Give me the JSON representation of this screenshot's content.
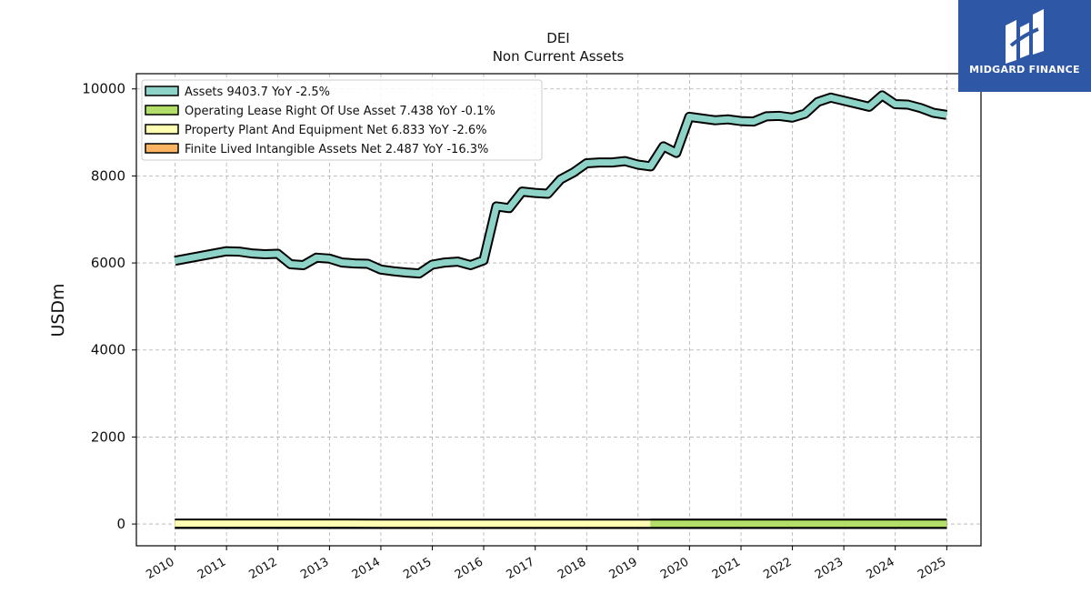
{
  "brand": {
    "name": "MIDGARD FINANCE",
    "logo_icon": "midgard-logo-icon",
    "background": "#2e58a6"
  },
  "chart_data": {
    "type": "line",
    "title": "DEI",
    "subtitle": "Non Current  Assets",
    "ylabel": "USDm",
    "xlabel": "",
    "ylim": [
      -500,
      10350
    ],
    "yticks": [
      0,
      2000,
      4000,
      6000,
      8000,
      10000
    ],
    "xlim": [
      "2009-04-01",
      "2025-09-01"
    ],
    "xticks": [
      "2010",
      "2011",
      "2012",
      "2013",
      "2014",
      "2015",
      "2016",
      "2017",
      "2018",
      "2019",
      "2020",
      "2021",
      "2022",
      "2023",
      "2024",
      "2025"
    ],
    "grid": true,
    "legend_position": "top-left",
    "series": [
      {
        "name": "Assets",
        "legend_label": "Assets  9403.7 YoY -2.5%",
        "color": "#8dd3c7",
        "points": [
          [
            "2009-12-31",
            6050
          ],
          [
            "2010-12-31",
            6270
          ],
          [
            "2011-03-31",
            6260
          ],
          [
            "2011-06-30",
            6220
          ],
          [
            "2011-09-30",
            6200
          ],
          [
            "2011-12-31",
            6210
          ],
          [
            "2012-03-31",
            5970
          ],
          [
            "2012-06-30",
            5950
          ],
          [
            "2012-09-30",
            6120
          ],
          [
            "2012-12-31",
            6100
          ],
          [
            "2013-03-31",
            6010
          ],
          [
            "2013-06-30",
            5990
          ],
          [
            "2013-09-30",
            5980
          ],
          [
            "2013-12-31",
            5850
          ],
          [
            "2014-03-31",
            5810
          ],
          [
            "2014-06-30",
            5780
          ],
          [
            "2014-09-30",
            5760
          ],
          [
            "2014-12-31",
            5960
          ],
          [
            "2015-03-31",
            6010
          ],
          [
            "2015-06-30",
            6030
          ],
          [
            "2015-09-30",
            5950
          ],
          [
            "2015-12-31",
            6060
          ],
          [
            "2016-03-31",
            7300
          ],
          [
            "2016-06-30",
            7260
          ],
          [
            "2016-09-30",
            7640
          ],
          [
            "2016-12-31",
            7610
          ],
          [
            "2017-03-31",
            7590
          ],
          [
            "2017-06-30",
            7920
          ],
          [
            "2017-09-30",
            8080
          ],
          [
            "2017-12-31",
            8290
          ],
          [
            "2018-03-31",
            8310
          ],
          [
            "2018-06-30",
            8310
          ],
          [
            "2018-09-30",
            8340
          ],
          [
            "2018-12-31",
            8260
          ],
          [
            "2019-03-31",
            8220
          ],
          [
            "2019-06-30",
            8680
          ],
          [
            "2019-09-30",
            8530
          ],
          [
            "2019-12-31",
            9360
          ],
          [
            "2020-03-31",
            9320
          ],
          [
            "2020-06-30",
            9280
          ],
          [
            "2020-09-30",
            9300
          ],
          [
            "2020-12-31",
            9260
          ],
          [
            "2021-03-31",
            9250
          ],
          [
            "2021-06-30",
            9370
          ],
          [
            "2021-09-30",
            9380
          ],
          [
            "2021-12-31",
            9340
          ],
          [
            "2022-03-31",
            9430
          ],
          [
            "2022-06-30",
            9700
          ],
          [
            "2022-09-30",
            9800
          ],
          [
            "2022-12-31",
            9730
          ],
          [
            "2023-03-31",
            9660
          ],
          [
            "2023-06-30",
            9590
          ],
          [
            "2023-09-30",
            9850
          ],
          [
            "2023-12-31",
            9650
          ],
          [
            "2024-03-31",
            9640
          ],
          [
            "2024-06-30",
            9560
          ],
          [
            "2024-09-30",
            9450
          ],
          [
            "2024-12-31",
            9403.7
          ]
        ]
      },
      {
        "name": "Operating Lease Right Of Use Asset",
        "legend_label": "Operating Lease Right Of Use Asset  7.438 YoY -0.1%",
        "color": "#b3de69",
        "points": [
          [
            "2019-03-31",
            7.5
          ],
          [
            "2020-12-31",
            7.5
          ],
          [
            "2022-12-31",
            7.45
          ],
          [
            "2024-12-31",
            7.438
          ]
        ]
      },
      {
        "name": "Property Plant And Equipment Net",
        "legend_label": "Property Plant And Equipment Net  6.833 YoY -2.6%",
        "color": "#ffffb3",
        "points": [
          [
            "2009-12-31",
            10
          ],
          [
            "2013-12-31",
            9
          ],
          [
            "2018-12-31",
            7.5
          ],
          [
            "2024-12-31",
            6.833
          ]
        ]
      },
      {
        "name": "Finite Lived Intangible Assets Net",
        "legend_label": "Finite Lived Intangible Assets Net  2.487 YoY -16.3%",
        "color": "#fdb462",
        "points": [
          [
            "2009-12-31",
            2.5
          ],
          [
            "2024-12-31",
            2.487
          ]
        ]
      }
    ]
  }
}
